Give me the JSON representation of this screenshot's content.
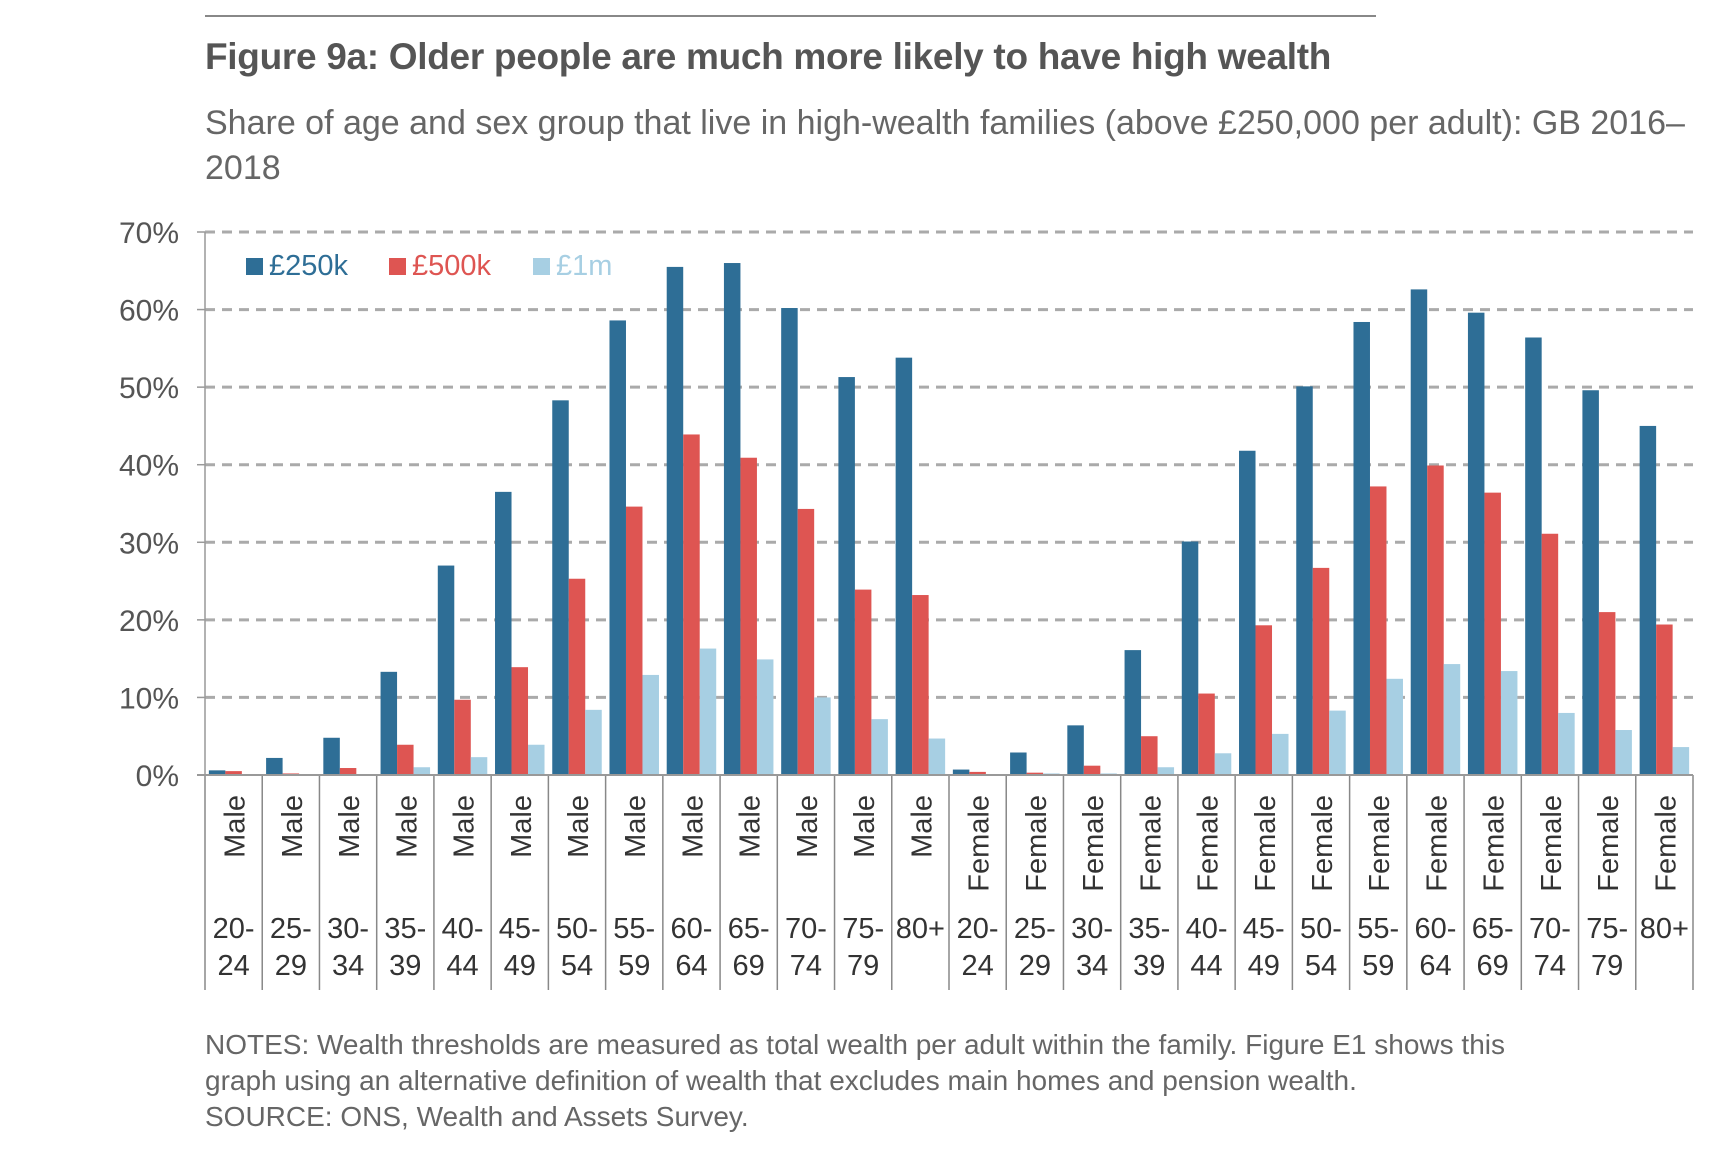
{
  "title": "Figure 9a: Older people are much more likely to have high wealth",
  "subtitle": "Share of age and sex group that live in high-wealth families (above £250,000 per adult): GB 2016–2018",
  "notes": [
    "NOTES: Wealth thresholds are measured as total wealth per adult within the family. Figure E1 shows this",
    "graph using an alternative definition of wealth that excludes main homes and pension wealth.",
    "SOURCE: ONS, Wealth and Assets Survey."
  ],
  "chart_data": {
    "type": "bar",
    "title": "Figure 9a: Older people are much more likely to have high wealth",
    "xlabel": "",
    "ylabel": "",
    "ylim": [
      0,
      70
    ],
    "yticks": [
      0,
      10,
      20,
      30,
      40,
      50,
      60,
      70
    ],
    "ytick_labels": [
      "0%",
      "10%",
      "20%",
      "30%",
      "40%",
      "50%",
      "60%",
      "70%"
    ],
    "grid": true,
    "legend_position": "top-left",
    "categories": [
      {
        "sex": "Male",
        "age": [
          "20-",
          "24"
        ]
      },
      {
        "sex": "Male",
        "age": [
          "25-",
          "29"
        ]
      },
      {
        "sex": "Male",
        "age": [
          "30-",
          "34"
        ]
      },
      {
        "sex": "Male",
        "age": [
          "35-",
          "39"
        ]
      },
      {
        "sex": "Male",
        "age": [
          "40-",
          "44"
        ]
      },
      {
        "sex": "Male",
        "age": [
          "45-",
          "49"
        ]
      },
      {
        "sex": "Male",
        "age": [
          "50-",
          "54"
        ]
      },
      {
        "sex": "Male",
        "age": [
          "55-",
          "59"
        ]
      },
      {
        "sex": "Male",
        "age": [
          "60-",
          "64"
        ]
      },
      {
        "sex": "Male",
        "age": [
          "65-",
          "69"
        ]
      },
      {
        "sex": "Male",
        "age": [
          "70-",
          "74"
        ]
      },
      {
        "sex": "Male",
        "age": [
          "75-",
          "79"
        ]
      },
      {
        "sex": "Male",
        "age": [
          "80+",
          ""
        ]
      },
      {
        "sex": "Female",
        "age": [
          "20-",
          "24"
        ]
      },
      {
        "sex": "Female",
        "age": [
          "25-",
          "29"
        ]
      },
      {
        "sex": "Female",
        "age": [
          "30-",
          "34"
        ]
      },
      {
        "sex": "Female",
        "age": [
          "35-",
          "39"
        ]
      },
      {
        "sex": "Female",
        "age": [
          "40-",
          "44"
        ]
      },
      {
        "sex": "Female",
        "age": [
          "45-",
          "49"
        ]
      },
      {
        "sex": "Female",
        "age": [
          "50-",
          "54"
        ]
      },
      {
        "sex": "Female",
        "age": [
          "55-",
          "59"
        ]
      },
      {
        "sex": "Female",
        "age": [
          "60-",
          "64"
        ]
      },
      {
        "sex": "Female",
        "age": [
          "65-",
          "69"
        ]
      },
      {
        "sex": "Female",
        "age": [
          "70-",
          "74"
        ]
      },
      {
        "sex": "Female",
        "age": [
          "75-",
          "79"
        ]
      },
      {
        "sex": "Female",
        "age": [
          "80+",
          ""
        ]
      }
    ],
    "series": [
      {
        "name": "£250k",
        "color": "#2e6e96",
        "values": [
          0.6,
          2.2,
          4.8,
          13.3,
          27.0,
          36.5,
          48.3,
          58.6,
          65.5,
          66.0,
          60.2,
          51.3,
          53.8,
          0.7,
          2.9,
          6.4,
          16.1,
          30.1,
          41.8,
          50.1,
          58.4,
          62.6,
          59.6,
          56.4,
          49.6,
          45.0
        ]
      },
      {
        "name": "£500k",
        "color": "#de5552",
        "values": [
          0.5,
          0.2,
          0.9,
          3.9,
          9.7,
          13.9,
          25.3,
          34.6,
          43.9,
          40.9,
          34.3,
          23.9,
          23.2,
          0.4,
          0.3,
          1.2,
          5.0,
          10.5,
          19.3,
          26.7,
          37.2,
          39.9,
          36.4,
          31.1,
          21.0,
          19.4
        ]
      },
      {
        "name": "£1m",
        "color": "#a7cfe3",
        "values": [
          0.0,
          0.0,
          0.1,
          1.0,
          2.3,
          3.9,
          8.4,
          12.9,
          16.3,
          14.9,
          10.0,
          7.2,
          4.7,
          0.0,
          0.2,
          0.2,
          1.0,
          2.8,
          5.3,
          8.3,
          12.4,
          14.3,
          13.4,
          8.0,
          5.8,
          3.6
        ]
      }
    ]
  }
}
